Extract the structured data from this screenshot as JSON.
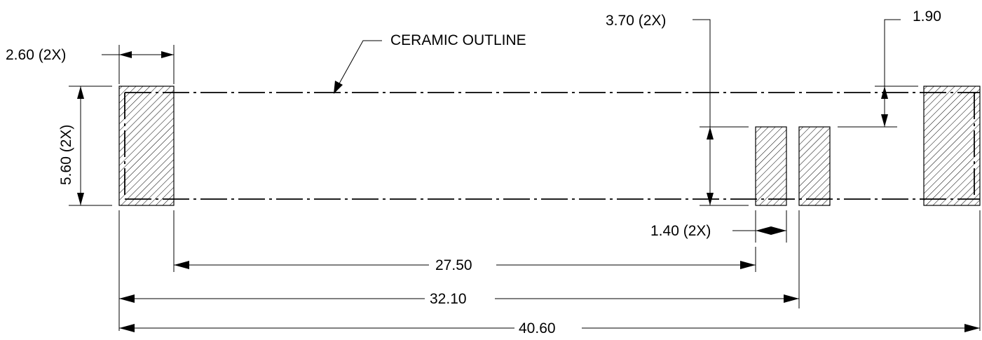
{
  "labels": {
    "ceramic_outline": "CERAMIC OUTLINE",
    "pad_width": "2.60 (2X)",
    "pad_height": "5.60 (2X)",
    "inner_pad_height": "3.70 (2X)",
    "offset": "1.90",
    "inner_pad_width": "1.40 (2X)",
    "span_inner": "27.50",
    "span_middle": "32.10",
    "span_overall": "40.60"
  },
  "colors": {
    "line": "#000000",
    "background": "#ffffff"
  }
}
